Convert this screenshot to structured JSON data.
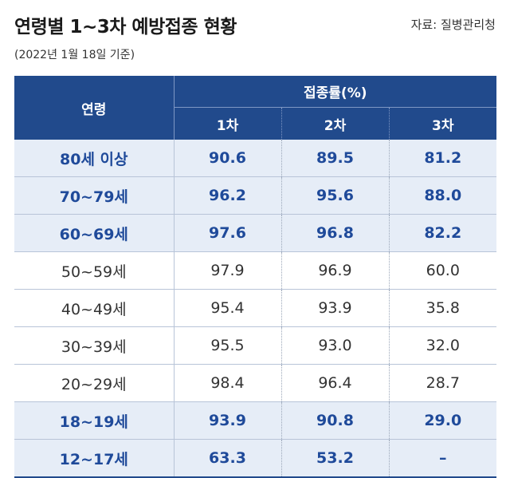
{
  "title": "연령별 1~3차 예방접종 현황",
  "source": "자료: 질병관리청",
  "date_note": "(2022년 1월 18일 기준)",
  "colors": {
    "header": "#214a8c",
    "highlight_bg": "#e6edf7",
    "highlight_text": "#1f4a9a"
  },
  "chart_data": {
    "type": "table",
    "title": "연령별 1~3차 예방접종 현황",
    "header": {
      "age": "연령",
      "rate": "접종률(%)",
      "doses": [
        "1차",
        "2차",
        "3차"
      ]
    },
    "rows": [
      {
        "age": "80세 이상",
        "values": [
          "90.6",
          "89.5",
          "81.2"
        ],
        "highlight": true
      },
      {
        "age": "70~79세",
        "values": [
          "96.2",
          "95.6",
          "88.0"
        ],
        "highlight": true
      },
      {
        "age": "60~69세",
        "values": [
          "97.6",
          "96.8",
          "82.2"
        ],
        "highlight": true
      },
      {
        "age": "50~59세",
        "values": [
          "97.9",
          "96.9",
          "60.0"
        ],
        "highlight": false
      },
      {
        "age": "40~49세",
        "values": [
          "95.4",
          "93.9",
          "35.8"
        ],
        "highlight": false
      },
      {
        "age": "30~39세",
        "values": [
          "95.5",
          "93.0",
          "32.0"
        ],
        "highlight": false
      },
      {
        "age": "20~29세",
        "values": [
          "98.4",
          "96.4",
          "28.7"
        ],
        "highlight": false
      },
      {
        "age": "18~19세",
        "values": [
          "93.9",
          "90.8",
          "29.0"
        ],
        "highlight": true
      },
      {
        "age": "12~17세",
        "values": [
          "63.3",
          "53.2",
          "–"
        ],
        "highlight": true
      }
    ]
  }
}
